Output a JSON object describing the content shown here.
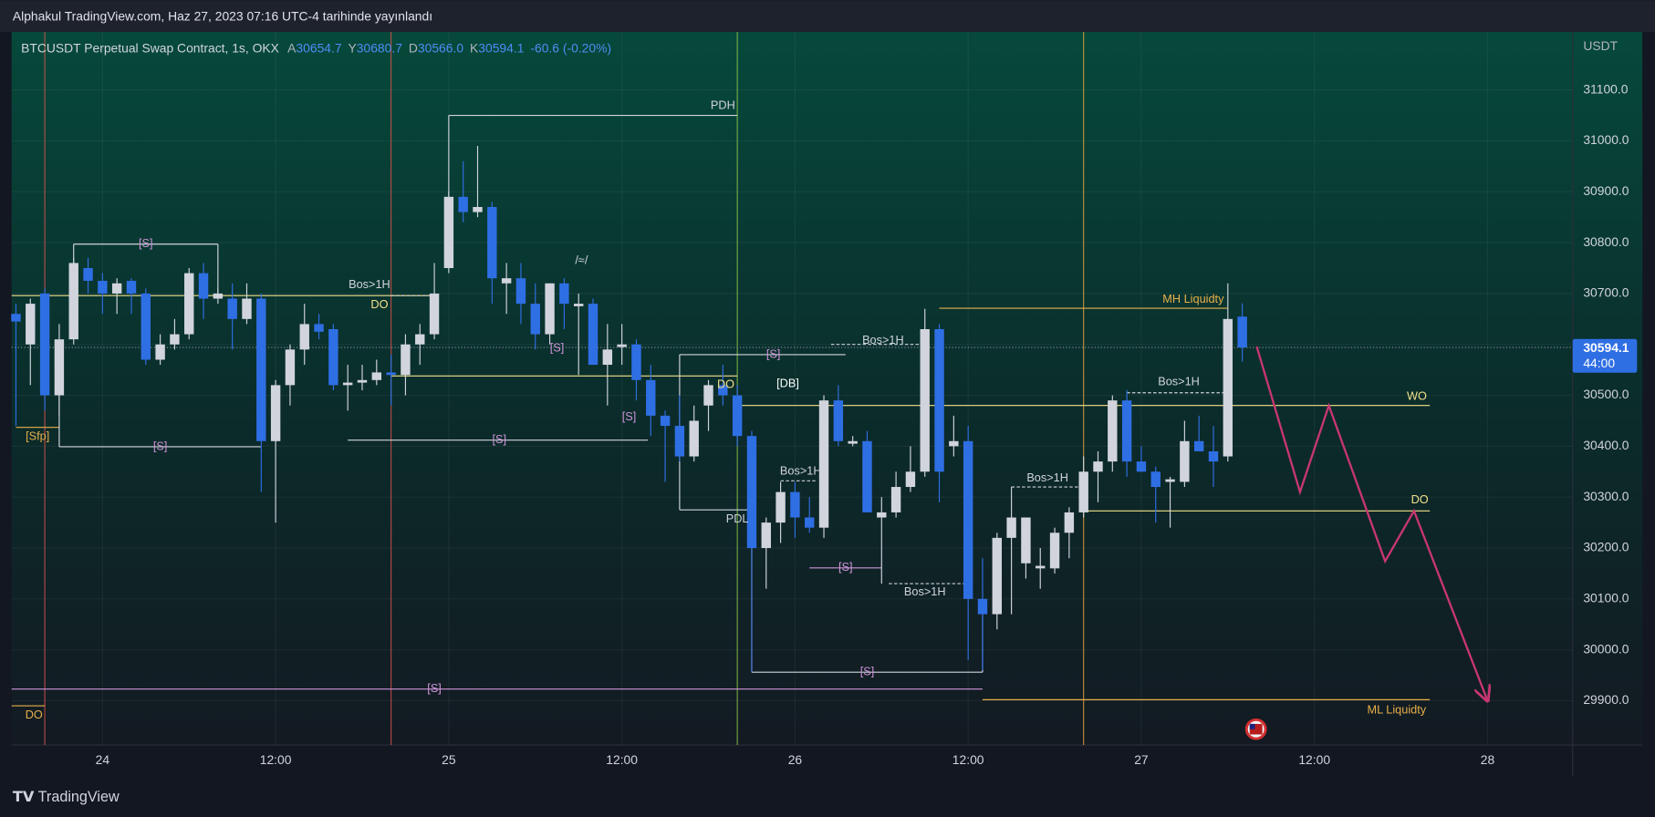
{
  "header": {
    "title": "Alphakul TradingView.com, Haz 27, 2023 07:16 UTC-4 tarihinde yayınlandı"
  },
  "footer": {
    "brand": "TradingView"
  },
  "chart_data": {
    "type": "candlestick",
    "symbol": "BTCUSDT Perpetual Swap Contract, 1s, OKX",
    "ohlc_legend": [
      {
        "key": "A",
        "value": "30654.7"
      },
      {
        "key": "Y",
        "value": "30680.7"
      },
      {
        "key": "D",
        "value": "30566.0"
      },
      {
        "key": "K",
        "value": "30594.1"
      }
    ],
    "change": "-60.6 (-0.20%)",
    "currency": "USDT",
    "up_color": "#d1d4dc",
    "down_color": "#2f6fe4",
    "x": [
      -6,
      -5,
      -4,
      -3,
      -2,
      -1,
      0,
      1,
      2,
      3,
      4,
      5,
      6,
      7,
      8,
      9,
      10,
      11,
      12,
      13,
      14,
      15,
      16,
      17,
      18,
      19,
      20,
      21,
      22,
      23,
      24,
      25,
      26,
      27,
      28,
      29,
      30,
      31,
      32,
      33,
      34,
      35,
      36,
      37,
      38,
      39,
      40,
      41,
      42,
      43,
      44,
      45,
      46,
      47,
      48,
      49,
      50,
      51,
      52,
      53,
      54,
      55,
      56,
      57,
      58,
      59,
      60,
      61,
      62,
      63,
      64,
      65,
      66,
      67,
      68,
      69,
      70,
      71,
      72,
      73,
      74,
      75,
      76,
      77,
      78,
      79
    ],
    "open": [
      30660,
      30600,
      30700,
      30500,
      30610,
      30750,
      30725,
      30700,
      30725,
      30700,
      30570,
      30600,
      30620,
      30740,
      30690,
      30690,
      30650,
      30690,
      30410,
      30520,
      30590,
      30640,
      30630,
      30520,
      30525,
      30530,
      30545,
      30540,
      30600,
      30620,
      30750,
      30890,
      30860,
      30870,
      30720,
      30730,
      30680,
      30620,
      30720,
      30675,
      30680,
      30560,
      30595,
      30600,
      30530,
      30460,
      30440,
      30380,
      30480,
      30520,
      30500,
      30420,
      30200,
      30250,
      30310,
      30260,
      30240,
      30490,
      30405,
      30410,
      30260,
      30270,
      30320,
      30350,
      30630,
      30400,
      30410,
      30100,
      30070,
      30220,
      30170,
      30160,
      30160,
      30230,
      30270,
      30350,
      30370,
      30490,
      30370,
      30350,
      30330,
      30330,
      30410,
      30390,
      30380,
      30654.7
    ],
    "high": [
      30680,
      30690,
      30710,
      30640,
      30770,
      30770,
      30740,
      30730,
      30730,
      30710,
      30620,
      30650,
      30750,
      30760,
      30710,
      30720,
      30720,
      30700,
      30530,
      30600,
      30680,
      30660,
      30640,
      30560,
      30560,
      30570,
      30580,
      30620,
      30640,
      30760,
      30900,
      30960,
      30990,
      30880,
      30760,
      30760,
      30720,
      30720,
      30730,
      30700,
      30690,
      30640,
      30640,
      30610,
      30560,
      30470,
      30500,
      30480,
      30530,
      30560,
      30520,
      30430,
      30260,
      30330,
      30330,
      30300,
      30500,
      30520,
      30420,
      30430,
      30300,
      30350,
      30400,
      30670,
      30640,
      30460,
      30440,
      30180,
      30230,
      30320,
      30260,
      30200,
      30240,
      30280,
      30380,
      30390,
      30500,
      30510,
      30400,
      30360,
      30340,
      30450,
      30460,
      30440,
      30720,
      30680.7
    ],
    "low": [
      30440,
      30520,
      30470,
      30460,
      30600,
      30700,
      30660,
      30660,
      30660,
      30560,
      30560,
      30590,
      30610,
      30650,
      30680,
      30590,
      30640,
      30310,
      30250,
      30480,
      30560,
      30610,
      30510,
      30470,
      30510,
      30520,
      30480,
      30500,
      30560,
      30610,
      30740,
      30840,
      30850,
      30680,
      30660,
      30640,
      30590,
      30600,
      30630,
      30540,
      30560,
      30480,
      30560,
      30490,
      30420,
      30330,
      30370,
      30370,
      30430,
      30480,
      30400,
      30200,
      30120,
      30210,
      30220,
      30230,
      30220,
      30400,
      30400,
      30270,
      30130,
      30260,
      30310,
      30340,
      30290,
      30380,
      29980,
      29960,
      30040,
      30070,
      30140,
      30120,
      30150,
      30180,
      30260,
      30290,
      30350,
      30340,
      30350,
      30250,
      30240,
      30320,
      30390,
      30320,
      30370,
      30566.0
    ],
    "close": [
      30645,
      30680,
      30500,
      30610,
      30760,
      30725,
      30700,
      30720,
      30700,
      30570,
      30600,
      30620,
      30740,
      30690,
      30700,
      30650,
      30690,
      30410,
      30520,
      30590,
      30640,
      30625,
      30520,
      30525,
      30530,
      30545,
      30540,
      30600,
      30620,
      30700,
      30890,
      30860,
      30870,
      30730,
      30730,
      30680,
      30620,
      30720,
      30680,
      30680,
      30560,
      30590,
      30600,
      30530,
      30460,
      30440,
      30380,
      30450,
      30520,
      30500,
      30420,
      30200,
      30250,
      30310,
      30260,
      30240,
      30490,
      30410,
      30410,
      30270,
      30270,
      30320,
      30350,
      30630,
      30350,
      30410,
      30100,
      30070,
      30220,
      30260,
      30260,
      30165,
      30230,
      30270,
      30350,
      30370,
      30490,
      30370,
      30350,
      30320,
      30335,
      30410,
      30390,
      30370,
      30650,
      30594.1
    ],
    "xlim": [
      -6.3,
      101.9
    ],
    "xticks": [
      {
        "value": 0,
        "label": "24"
      },
      {
        "value": 12,
        "label": "12:00"
      },
      {
        "value": 24,
        "label": "25"
      },
      {
        "value": 36,
        "label": "12:00"
      },
      {
        "value": 48,
        "label": "26"
      },
      {
        "value": 60,
        "label": "12:00"
      },
      {
        "value": 72,
        "label": "27"
      },
      {
        "value": 84,
        "label": "12:00"
      },
      {
        "value": 96,
        "label": "28"
      }
    ],
    "ylim": [
      29813,
      31214
    ],
    "yticks": [
      {
        "value": 29900,
        "label": "29900.0"
      },
      {
        "value": 30000,
        "label": "30000.0"
      },
      {
        "value": 30100,
        "label": "30100.0"
      },
      {
        "value": 30200,
        "label": "30200.0"
      },
      {
        "value": 30300,
        "label": "30300.0"
      },
      {
        "value": 30400,
        "label": "30400.0"
      },
      {
        "value": 30500,
        "label": "30500.0"
      },
      {
        "value": 30600,
        "label": "30600.0"
      },
      {
        "value": 30700,
        "label": "30700.0"
      },
      {
        "value": 30800,
        "label": "30800.0"
      },
      {
        "value": 30900,
        "label": "30900.0"
      },
      {
        "value": 31000,
        "label": "31000.0"
      },
      {
        "value": 31100,
        "label": "31100.0"
      }
    ],
    "last_price": 30594.1,
    "countdown": "44:00",
    "vlines": [
      {
        "x": -4,
        "color": "#d9534f"
      },
      {
        "x": 20,
        "color": "#d9534f"
      },
      {
        "x": 44,
        "color": "#8bc34a"
      },
      {
        "x": 68,
        "color": "#e8a33c"
      }
    ],
    "lines": [
      {
        "x": [
          -6.3,
          22.9
        ],
        "y": [
          30696,
          30696
        ],
        "color": "#f3e08a"
      },
      {
        "x": [
          20,
          22.9
        ],
        "y": [
          30696,
          30696
        ],
        "color": "#d1d4dc",
        "dash": true
      },
      {
        "x": [
          20,
          44
        ],
        "y": [
          30538,
          30538
        ],
        "color": "#f3e08a"
      },
      {
        "x": [
          44,
          92
        ],
        "y": [
          30480,
          30480
        ],
        "color": "#f3e08a"
      },
      {
        "x": [
          68,
          92
        ],
        "y": [
          30273,
          30273
        ],
        "color": "#f3e08a"
      },
      {
        "x": [
          58,
          78
        ],
        "y": [
          30671,
          30671
        ],
        "color": "#e8b04a"
      },
      {
        "x": [
          61,
          92
        ],
        "y": [
          29902,
          29902
        ],
        "color": "#e8b04a"
      },
      {
        "x": [
          -6,
          -3
        ],
        "y": [
          30437,
          30437
        ],
        "color": "#e8b04a"
      },
      {
        "x": [
          -6.3,
          -4
        ],
        "y": [
          29890,
          29890
        ],
        "color": "#e8b04a"
      },
      {
        "x": [
          24,
          44
        ],
        "y": [
          31050,
          31050
        ],
        "color": "#d1d4dc"
      },
      {
        "x": [
          24,
          24
        ],
        "y": [
          31050,
          30890
        ],
        "color": "#d1d4dc"
      },
      {
        "x": [
          40,
          44.8
        ],
        "y": [
          30275,
          30275
        ],
        "color": "#d1d4dc"
      },
      {
        "x": [
          -6.3,
          61
        ],
        "y": [
          29923,
          29923
        ],
        "color": "#ce93d8"
      },
      {
        "x": [
          -2,
          8
        ],
        "y": [
          30797,
          30797
        ],
        "color": "#d1d4dc"
      },
      {
        "x": [
          -2,
          -2
        ],
        "y": [
          30797,
          30760
        ],
        "color": "#d1d4dc"
      },
      {
        "x": [
          8,
          8
        ],
        "y": [
          30797,
          30700
        ],
        "color": "#d1d4dc"
      },
      {
        "x": [
          -3,
          11
        ],
        "y": [
          30399,
          30399
        ],
        "color": "#d1d4dc"
      },
      {
        "x": [
          -3,
          -3
        ],
        "y": [
          30399,
          30500
        ],
        "color": "#d1d4dc"
      },
      {
        "x": [
          17,
          37.8
        ],
        "y": [
          30412,
          30412
        ],
        "color": "#d1d4dc"
      },
      {
        "x": [
          40,
          51.5
        ],
        "y": [
          30580,
          30580
        ],
        "color": "#d1d4dc"
      },
      {
        "x": [
          40,
          40
        ],
        "y": [
          30580,
          30275
        ],
        "color": "#d1d4dc"
      },
      {
        "x": [
          49,
          54
        ],
        "y": [
          30161,
          30161
        ],
        "color": "#ce93d8"
      },
      {
        "x": [
          45,
          61
        ],
        "y": [
          29956,
          29956
        ],
        "color": "#d1d4dc"
      },
      {
        "x": [
          45,
          45
        ],
        "y": [
          29956,
          30200
        ],
        "color": "#5b8cf0"
      },
      {
        "x": [
          61,
          61
        ],
        "y": [
          29956,
          30070
        ],
        "color": "#d1d4dc"
      },
      {
        "x": [
          50.5,
          57
        ],
        "y": [
          30600,
          30600
        ],
        "color": "#d1d4dc",
        "dash": true
      },
      {
        "x": [
          47,
          49.5
        ],
        "y": [
          30332,
          30332
        ],
        "color": "#d1d4dc",
        "dash": true
      },
      {
        "x": [
          63,
          68
        ],
        "y": [
          30320,
          30320
        ],
        "color": "#d1d4dc",
        "dash": true
      },
      {
        "x": [
          54.5,
          60
        ],
        "y": [
          30130,
          30130
        ],
        "color": "#d1d4dc",
        "dash": true
      },
      {
        "x": [
          71,
          78
        ],
        "y": [
          30505,
          30505
        ],
        "color": "#d1d4dc",
        "dash": true
      }
    ],
    "annotations": [
      {
        "text": "Bos>1H",
        "x": 18.5,
        "y": 30717,
        "color": "#d1d4dc"
      },
      {
        "text": "DO",
        "x": 19.2,
        "y": 30677,
        "color": "#f3e08a"
      },
      {
        "text": "DO",
        "x": 43.2,
        "y": 30520,
        "color": "#f3e08a"
      },
      {
        "text": "WO",
        "x": 91.1,
        "y": 30497,
        "color": "#f3e08a"
      },
      {
        "text": "DO",
        "x": 91.3,
        "y": 30294,
        "color": "#f3e08a"
      },
      {
        "text": "MH Liquidty",
        "x": 75.6,
        "y": 30688,
        "color": "#e8b04a"
      },
      {
        "text": "ML Liquidty",
        "x": 89.7,
        "y": 29881,
        "color": "#e8b04a"
      },
      {
        "text": "[Sfp]",
        "x": -4.5,
        "y": 30418,
        "color": "#e8b04a"
      },
      {
        "text": "DO",
        "x": -4.75,
        "y": 29871,
        "color": "#e8b04a"
      },
      {
        "text": "PDH",
        "x": 43,
        "y": 31069,
        "color": "#d1d4dc"
      },
      {
        "text": "PDL",
        "x": 44,
        "y": 30256,
        "color": "#d1d4dc"
      },
      {
        "text": "[S]",
        "x": 23,
        "y": 29923,
        "color": "#ce93d8"
      },
      {
        "text": "[S]",
        "x": 3,
        "y": 30797,
        "color": "#ce93d8"
      },
      {
        "text": "[S]",
        "x": 4,
        "y": 30399,
        "color": "#ce93d8"
      },
      {
        "text": "[S]",
        "x": 27.5,
        "y": 30412,
        "color": "#ce93d8"
      },
      {
        "text": "[S]",
        "x": 31.5,
        "y": 30592,
        "color": "#ce93d8"
      },
      {
        "text": "[S]",
        "x": 36.5,
        "y": 30457,
        "color": "#ce93d8"
      },
      {
        "text": "[S]",
        "x": 46.5,
        "y": 30580,
        "color": "#ce93d8"
      },
      {
        "text": "[S]",
        "x": 51.5,
        "y": 30161,
        "color": "#ce93d8"
      },
      {
        "text": "[S]",
        "x": 53,
        "y": 29956,
        "color": "#ce93d8"
      },
      {
        "text": "/≈/",
        "x": 33.2,
        "y": 30764,
        "color": "#d1d4dc"
      },
      {
        "text": "[DB]",
        "x": 47.5,
        "y": 30522,
        "color": "#ffffff"
      },
      {
        "text": "Bos>1H",
        "x": 54.1,
        "y": 30607,
        "color": "#d1d4dc"
      },
      {
        "text": "Bos>1H",
        "x": 48.4,
        "y": 30350,
        "color": "#d1d4dc"
      },
      {
        "text": "Bos>1H",
        "x": 65.5,
        "y": 30337,
        "color": "#d1d4dc"
      },
      {
        "text": "Bos>1H",
        "x": 57,
        "y": 30113,
        "color": "#d1d4dc"
      },
      {
        "text": "Bos>1H",
        "x": 74.6,
        "y": 30526,
        "color": "#d1d4dc"
      }
    ],
    "projection": {
      "color": "#c8376f",
      "x": [
        80,
        83,
        85,
        88.9,
        90.9,
        96
      ],
      "y": [
        30596,
        30310,
        30480,
        30174,
        30273,
        29900
      ]
    }
  }
}
